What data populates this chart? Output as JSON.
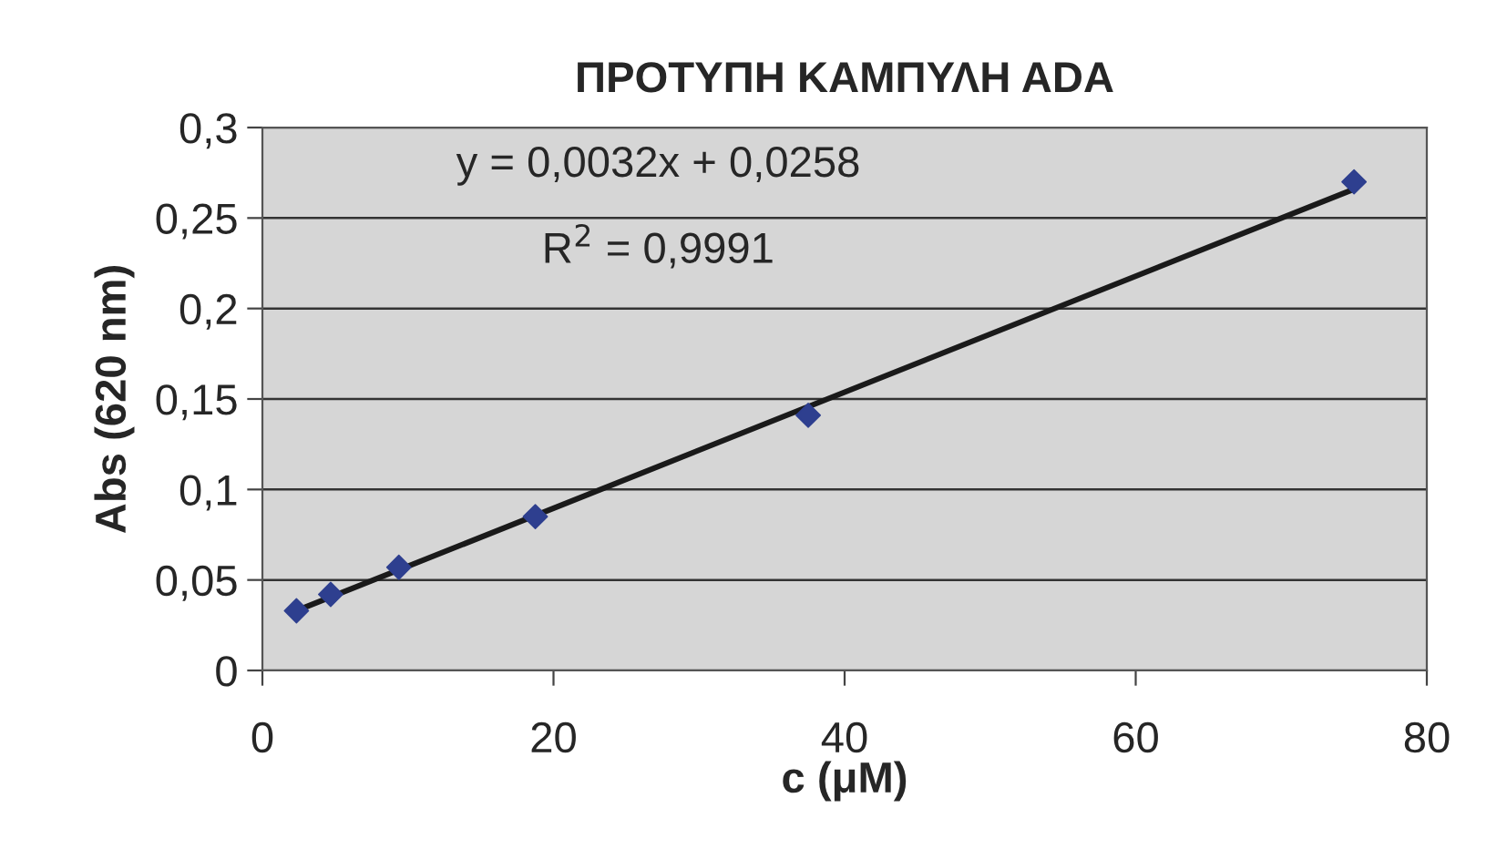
{
  "chart_data": {
    "type": "scatter",
    "title": "ΠΡΟΤΥΠΗ ΚΑΜΠΥΛΗ ADA",
    "xlabel": "c (μM)",
    "ylabel": "Abs (620 nm)",
    "series": [
      {
        "color": "#2e3f8f",
        "marker": "diamond",
        "x": [
          2.34,
          4.69,
          9.375,
          18.75,
          37.5,
          75
        ],
        "values": [
          0.033,
          0.042,
          0.057,
          0.085,
          0.141,
          0.27
        ]
      },
      {
        "type": "line",
        "color": "#1a1a1a",
        "marker": "none",
        "line_style": "solid",
        "x": [
          2.34,
          75
        ],
        "values": [
          0.033,
          0.266
        ]
      }
    ],
    "annotations": [
      "y = 0,0032x + 0,0258",
      "R$^{2}$ = 0,9991"
    ],
    "xlim": [
      0,
      80
    ],
    "xticks": [
      0,
      20,
      40,
      60,
      80
    ],
    "ylim": [
      0,
      0.3
    ],
    "yticks": [
      {
        "value": 0,
        "label": "0"
      },
      {
        "value": 0.05,
        "label": "0,05"
      },
      {
        "value": 0.1,
        "label": "0,1"
      },
      {
        "value": 0.15,
        "label": "0,15"
      },
      {
        "value": 0.2,
        "label": "0,2"
      },
      {
        "value": 0.25,
        "label": "0,25"
      },
      {
        "value": 0.3,
        "label": "0,3"
      }
    ],
    "grid": "y",
    "legend": false
  }
}
